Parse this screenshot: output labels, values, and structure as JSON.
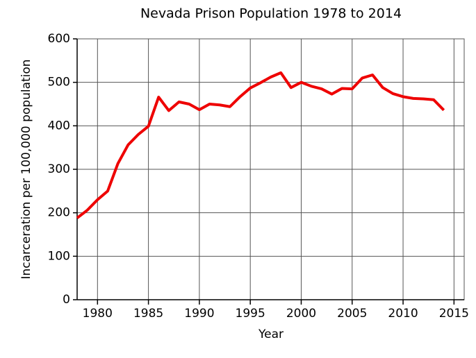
{
  "chart_data": {
    "type": "line",
    "title": "Nevada Prison Population 1978 to 2014",
    "x_label": "Year",
    "y_label": "Incarceration per 100,000 population",
    "x": [
      1978,
      1979,
      1980,
      1981,
      1982,
      1983,
      1984,
      1985,
      1986,
      1987,
      1988,
      1989,
      1990,
      1991,
      1992,
      1993,
      1994,
      1995,
      1996,
      1997,
      1998,
      1999,
      2000,
      2001,
      2002,
      2003,
      2004,
      2005,
      2006,
      2007,
      2008,
      2009,
      2010,
      2011,
      2012,
      2013,
      2014
    ],
    "series": [
      {
        "name": "Nevada",
        "color": "#ee0000",
        "values": [
          188,
          206,
          230,
          250,
          313,
          356,
          380,
          399,
          466,
          435,
          455,
          450,
          437,
          450,
          448,
          444,
          467,
          487,
          499,
          512,
          522,
          488,
          500,
          491,
          485,
          473,
          486,
          485,
          510,
          517,
          488,
          474,
          467,
          463,
          462,
          460,
          436
        ]
      }
    ],
    "xlim": [
      1978,
      2016
    ],
    "ylim": [
      0,
      600
    ],
    "xticks": [
      1980,
      1985,
      1990,
      1995,
      2000,
      2005,
      2010,
      2015
    ],
    "yticks": [
      0,
      100,
      200,
      300,
      400,
      500,
      600
    ],
    "grid": true
  }
}
